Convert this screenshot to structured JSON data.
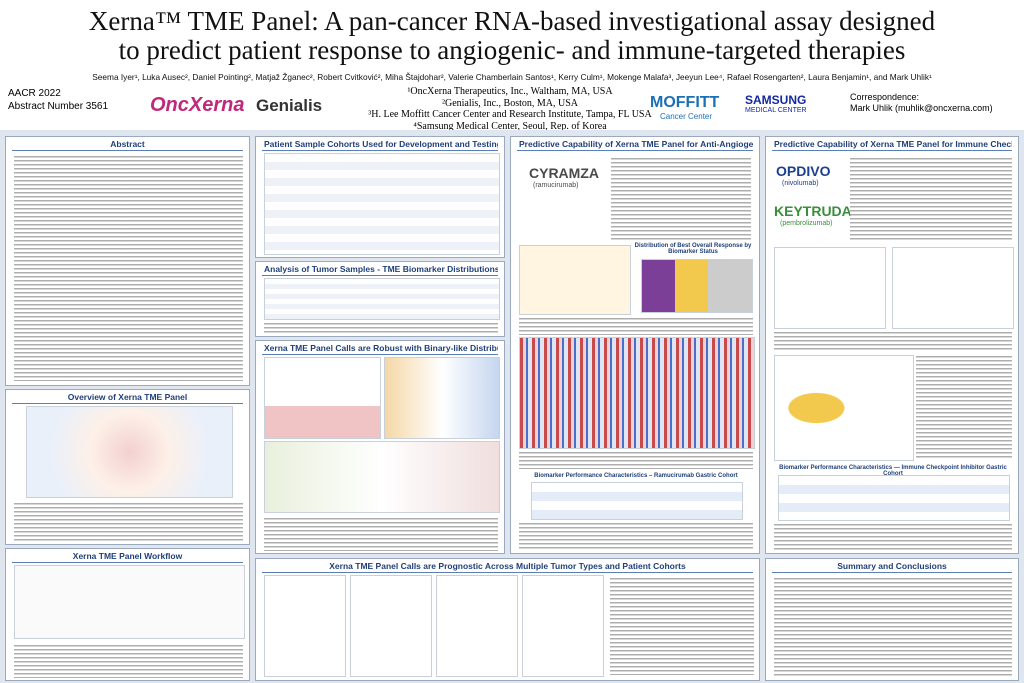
{
  "header": {
    "title_lines": [
      "Xerna™ TME Panel: A pan-cancer RNA-based investigational assay designed",
      "to predict patient response to angiogenic- and immune-targeted therapies"
    ],
    "authors": "Seema Iyer¹, Luka Ausec², Daniel Pointing², Matjaž Žganec², Robert Cvitković², Miha Štajdohar², Valerie Chamberlain Santos¹, Kerry Culm¹, Mokenge Malafa³, Jeeyun Lee⁴, Rafael Rosengarten², Laura Benjamin¹, and Mark Uhlik¹",
    "meeting": "AACR 2022",
    "abstract_number": "Abstract Number 3561",
    "affiliations": [
      "¹OncXerna Therapeutics, Inc., Waltham, MA, USA",
      "²Genialis, Inc., Boston, MA, USA",
      "³H. Lee Moffitt Cancer Center and Research Institute, Tampa, FL USA",
      "⁴Samsung Medical Center, Seoul, Rep. of Korea"
    ],
    "correspondence_label": "Correspondence:",
    "correspondence": "Mark Uhlik (muhlik@oncxerna.com)"
  },
  "logos": {
    "oncxerna": "OncXerna",
    "genialis": "Genialis",
    "moffitt": "MOFFITT",
    "moffitt_sub": "Cancer Center",
    "samsung": "SAMSUNG",
    "samsung_sub": "MEDICAL CENTER",
    "cyramza": "CYRAMZA",
    "cyramza_sub": "(ramucirumab)",
    "opdivo": "OPDIVO",
    "opdivo_sub": "(nivolumab)",
    "keytruda": "KEYTRUDA",
    "keytruda_sub": "(pembrolizumab)"
  },
  "sections": [
    {
      "title": "Abstract"
    },
    {
      "title": "Overview of Xerna TME Panel"
    },
    {
      "title": "Xerna TME Panel Workflow"
    },
    {
      "title": "Patient Sample Cohorts Used for Development and Testing"
    },
    {
      "title": "Analysis of Tumor Samples - TME Biomarker Distributions"
    },
    {
      "title": "Xerna TME Panel Calls are Robust with Binary-like Distributions"
    },
    {
      "title": "Predictive Capability of Xerna TME Panel for Anti-Angiogenic Therapy"
    },
    {
      "title": "Predictive Capability of Xerna TME Panel for Immune Checkpoint Therapy"
    },
    {
      "title": "Xerna TME Panel Calls are Prognostic Across Multiple Tumor Types and Patient Cohorts"
    },
    {
      "title": "Summary and Conclusions"
    }
  ],
  "subheads": {
    "angio_table": "Biomarker Performance Characteristics – Ramucirumab Gastric Cohort",
    "io_table": "Biomarker Performance Characteristics — Immune Checkpoint Inhibitor Gastric Cohort",
    "distribution": "Distribution of Best Overall Response by Biomarker Status"
  }
}
